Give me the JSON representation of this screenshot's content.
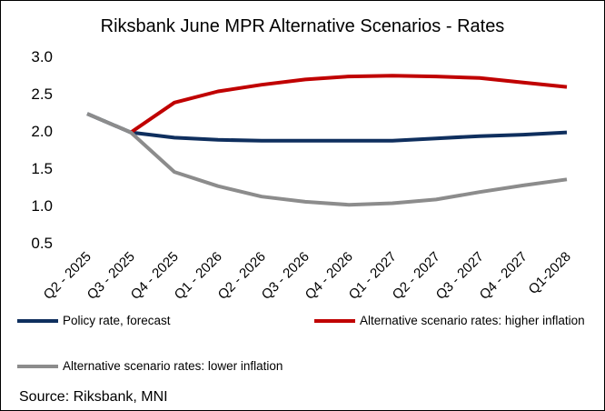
{
  "chart_data": {
    "type": "line",
    "title": "Riksbank  June  MPR Alternative  Scenarios - Rates",
    "xlabel": "",
    "ylabel": "",
    "categories": [
      "Q2 - 2025",
      "Q3 - 2025",
      "Q4 - 2025",
      "Q1 - 2026",
      "Q2 - 2026",
      "Q3 - 2026",
      "Q4 - 2026",
      "Q1 - 2027",
      "Q2 - 2027",
      "Q3 - 2027",
      "Q4 - 2027",
      "Q1-2028"
    ],
    "ylim": [
      0.5,
      3.0
    ],
    "yticks": [
      "0.5",
      "1.0",
      "1.5",
      "2.0",
      "2.5",
      "3.0"
    ],
    "grid": false,
    "legend_position": "bottom",
    "series": [
      {
        "name": "Policy rate, forecast",
        "color": "#0f2f5e",
        "values": [
          2.23,
          1.98,
          1.91,
          1.88,
          1.87,
          1.87,
          1.87,
          1.87,
          1.9,
          1.93,
          1.95,
          1.98
        ]
      },
      {
        "name": "Alternative scenario rates: higher inflation",
        "color": "#c00000",
        "start_index": 1,
        "values": [
          null,
          1.98,
          2.38,
          2.53,
          2.62,
          2.69,
          2.73,
          2.74,
          2.73,
          2.71,
          2.65,
          2.59
        ]
      },
      {
        "name": "Alternative scenario rates: lower inflation",
        "color": "#8c8c8c",
        "values": [
          2.23,
          1.98,
          1.45,
          1.26,
          1.12,
          1.05,
          1.01,
          1.03,
          1.08,
          1.18,
          1.27,
          1.35
        ]
      }
    ]
  },
  "source": "Source: Riksbank, MNI"
}
